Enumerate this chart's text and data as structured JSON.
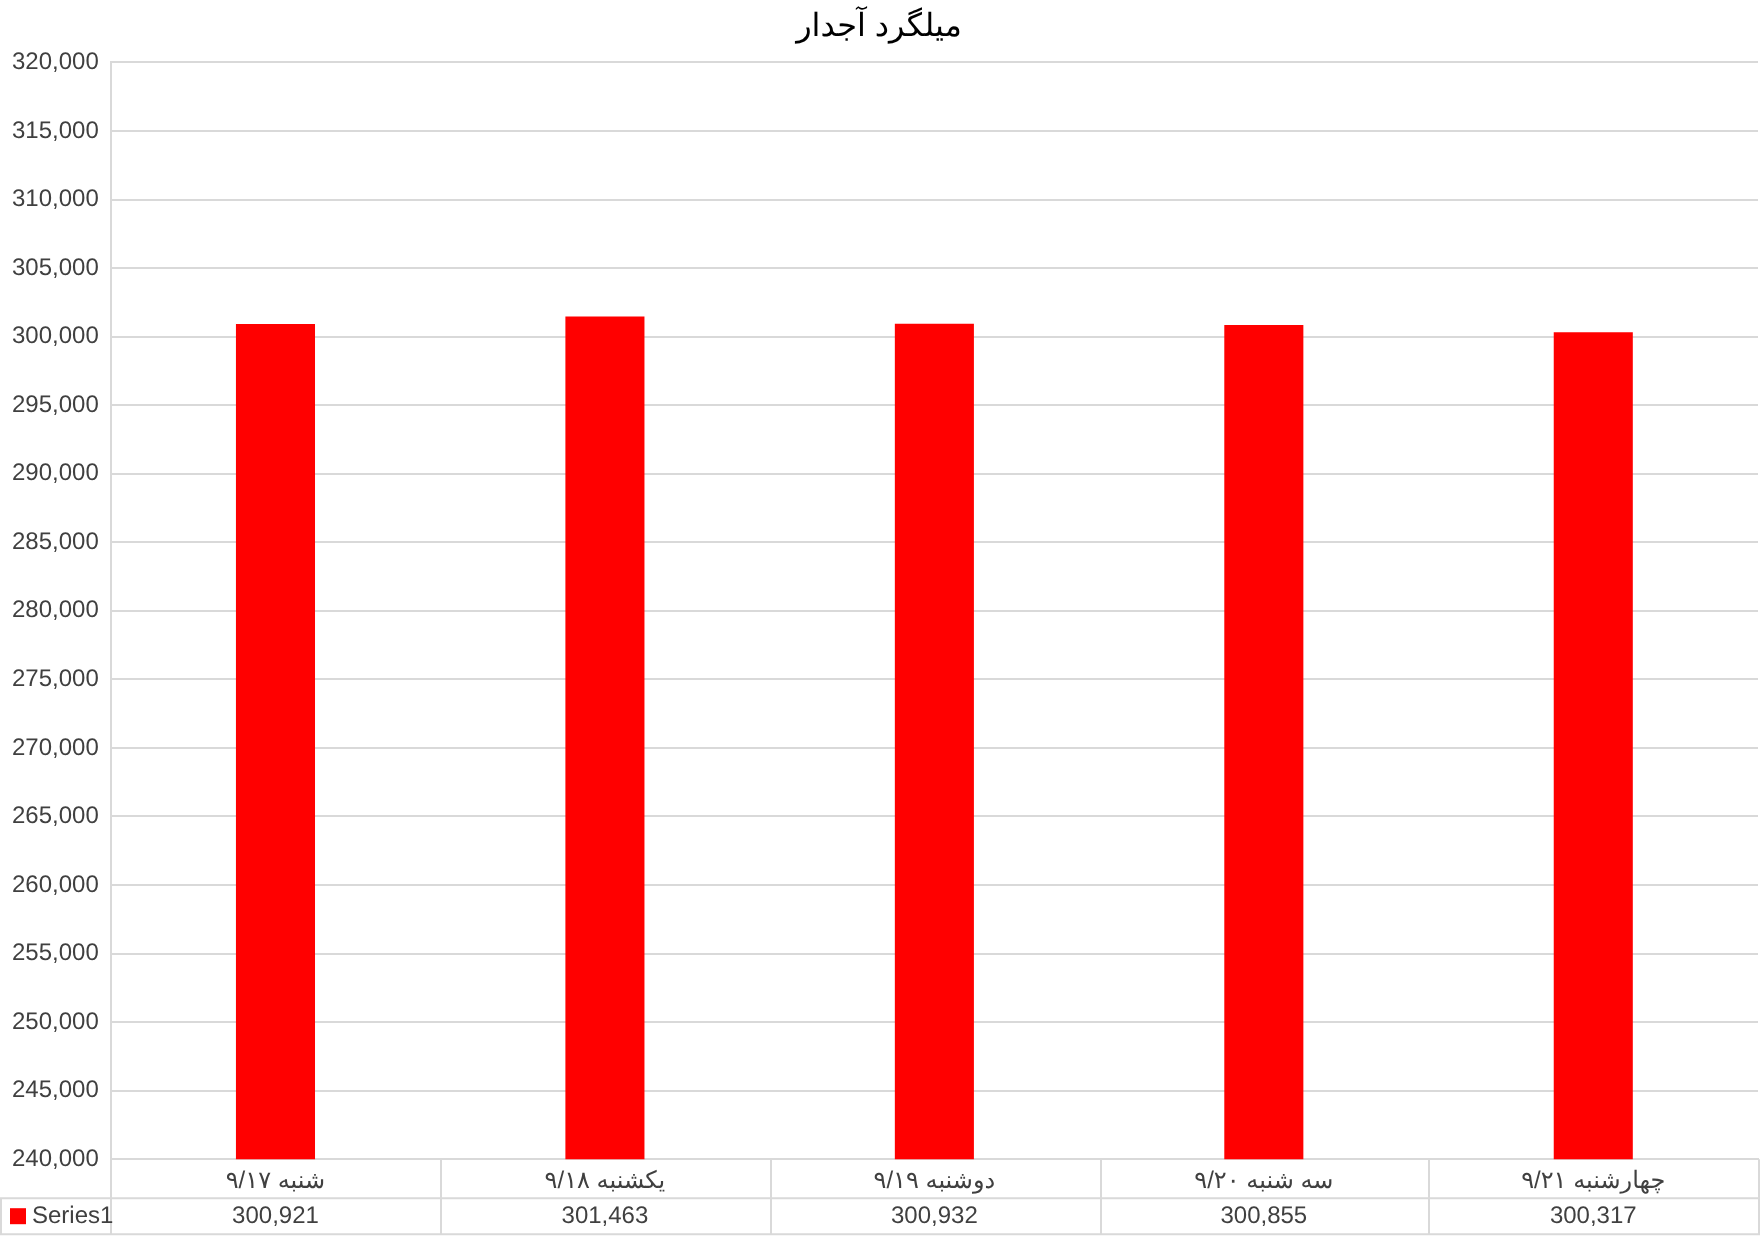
{
  "chart_data": {
    "type": "bar",
    "title": "میلگرد آجدار",
    "categories": [
      "شنبه ۹/۱۷",
      "یکشنبه ۹/۱۸",
      "دوشنبه ۹/۱۹",
      "سه شنبه ۹/۲۰",
      "چهارشنبه ۹/۲۱"
    ],
    "series": [
      {
        "name": "Series1",
        "color": "#ff0000",
        "values": [
          300921,
          301463,
          300932,
          300855,
          300317
        ],
        "value_labels": [
          "300,921",
          "301,463",
          "300,932",
          "300,855",
          "300,317"
        ]
      }
    ],
    "ylim": [
      240000,
      320000
    ],
    "yticks": [
      {
        "value": 240000,
        "label": "240,000"
      },
      {
        "value": 245000,
        "label": "245,000"
      },
      {
        "value": 250000,
        "label": "250,000"
      },
      {
        "value": 255000,
        "label": "255,000"
      },
      {
        "value": 260000,
        "label": "260,000"
      },
      {
        "value": 265000,
        "label": "265,000"
      },
      {
        "value": 270000,
        "label": "270,000"
      },
      {
        "value": 275000,
        "label": "275,000"
      },
      {
        "value": 280000,
        "label": "280,000"
      },
      {
        "value": 285000,
        "label": "285,000"
      },
      {
        "value": 290000,
        "label": "290,000"
      },
      {
        "value": 295000,
        "label": "295,000"
      },
      {
        "value": 300000,
        "label": "300,000"
      },
      {
        "value": 305000,
        "label": "305,000"
      },
      {
        "value": 310000,
        "label": "310,000"
      },
      {
        "value": 315000,
        "label": "315,000"
      },
      {
        "value": 320000,
        "label": "320,000"
      }
    ],
    "grid": "y",
    "legend": "bottom left"
  }
}
